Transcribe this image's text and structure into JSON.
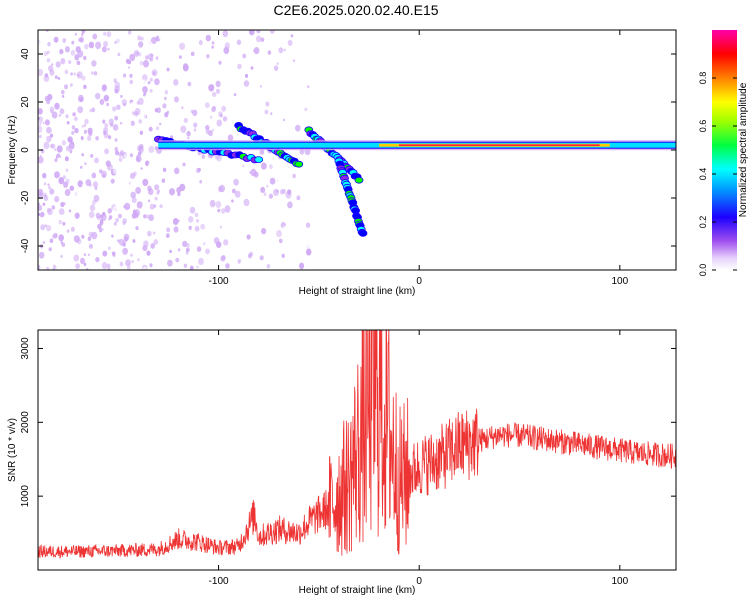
{
  "title": "C2E6.2025.020.02.40.E15",
  "chart_data": [
    {
      "type": "heatmap",
      "name": "spectrogram",
      "xlabel": "Height of straight line (km)",
      "ylabel": "Frequency (Hz)",
      "xlim": [
        -190,
        128
      ],
      "ylim": [
        -50,
        50
      ],
      "xticks": [
        -100,
        0,
        100
      ],
      "yticks": [
        -40,
        -20,
        0,
        20,
        40
      ],
      "colorbar": {
        "label": "Normalized spectral amplitude",
        "range": [
          0,
          1
        ],
        "ticks": [
          0.0,
          0.2,
          0.4,
          0.6,
          0.8
        ],
        "tick_labels": [
          "0.0",
          "0.2",
          "0.4",
          "0.6",
          "0.8"
        ],
        "colormap": [
          "#ffffff",
          "#cfa8f5",
          "#8a2be2",
          "#0000ff",
          "#00ffff",
          "#00ff00",
          "#ffff00",
          "#ff8000",
          "#ff0000",
          "#ff00aa"
        ]
      },
      "features": {
        "noise_region_x": [
          -190,
          -55
        ],
        "main_line": {
          "x": [
            -130,
            128
          ],
          "freq": 2
        },
        "branches": [
          {
            "x": [
              -130,
              -80
            ],
            "freq": [
              4,
              -4
            ]
          },
          {
            "x": [
              -90,
              -60
            ],
            "freq": [
              10,
              -6
            ]
          },
          {
            "x": [
              -55,
              -30
            ],
            "freq": [
              8,
              -12
            ]
          },
          {
            "x": [
              -40,
              -28
            ],
            "freq": [
              -5,
              -35
            ]
          }
        ]
      },
      "grid": false
    },
    {
      "type": "line",
      "name": "snr",
      "xlabel": "Height of straight line (km)",
      "ylabel": "SNR (10 * v/v)",
      "xlim": [
        -190,
        128
      ],
      "ylim": [
        0,
        3250
      ],
      "xticks": [
        -100,
        0,
        100
      ],
      "yticks": [
        1000,
        2000,
        3000
      ],
      "color": "#ee3333",
      "series": [
        {
          "x": [
            -190,
            -170,
            -150,
            -130,
            -120,
            -110,
            -100,
            -90,
            -82,
            -80,
            -70,
            -60,
            -55,
            -45,
            -35,
            -30,
            -25,
            -20,
            -15,
            -10,
            -5,
            0,
            10,
            20,
            30,
            40,
            50,
            60,
            70,
            80,
            90,
            100,
            110,
            120,
            128
          ],
          "y": [
            250,
            250,
            260,
            280,
            420,
            380,
            300,
            320,
            750,
            450,
            550,
            500,
            650,
            850,
            1200,
            1700,
            2200,
            2400,
            1900,
            1200,
            1300,
            1400,
            1500,
            1680,
            1750,
            1830,
            1820,
            1780,
            1740,
            1700,
            1660,
            1620,
            1580,
            1560,
            1540
          ]
        }
      ],
      "grid": false
    }
  ]
}
